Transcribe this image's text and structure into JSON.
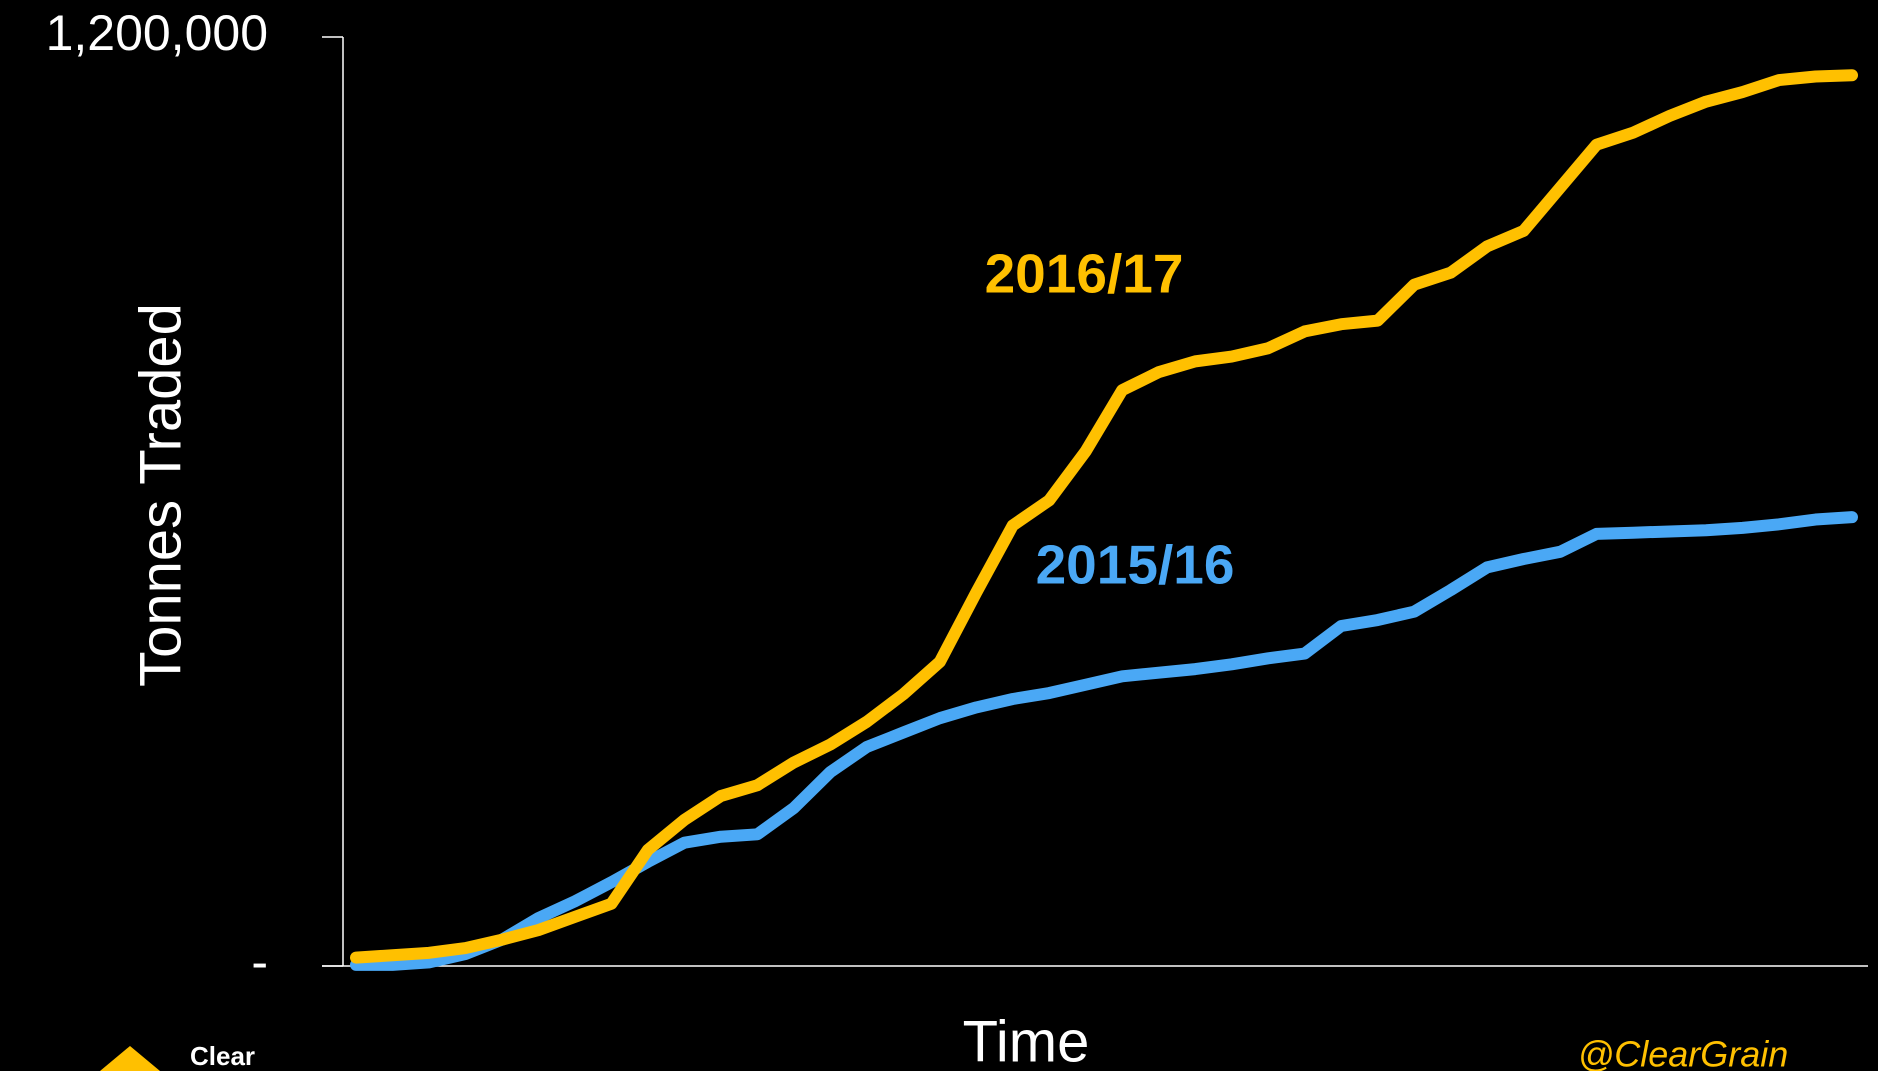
{
  "chart_data": {
    "type": "line",
    "y_label": "Tonnes Traded",
    "x_label": "Time",
    "watermark": "@ClearGrain",
    "logo_text": "Clear",
    "categories": [
      null,
      null,
      null,
      null,
      null,
      null,
      null,
      null,
      null,
      null,
      null,
      null,
      null,
      null,
      null,
      null,
      null,
      null,
      null,
      null,
      null,
      null,
      null,
      null,
      null,
      null,
      null,
      null,
      null,
      null,
      null,
      null,
      null,
      null,
      null,
      null,
      null,
      null,
      null,
      null,
      null,
      null
    ],
    "ylim": [
      0,
      1200000
    ],
    "yticks": [
      {
        "value": 0,
        "label": "-"
      },
      {
        "value": 1200000,
        "label": "1,200,000"
      }
    ],
    "series": [
      {
        "name": "2015/16",
        "color": "#4aa8f5",
        "values": [
          1500,
          1500,
          4600,
          15500,
          34000,
          61900,
          83500,
          108200,
          134500,
          159300,
          167000,
          170100,
          204100,
          250500,
          283000,
          301600,
          320100,
          334000,
          344900,
          352600,
          363400,
          374200,
          378900,
          383500,
          389700,
          397400,
          403600,
          439200,
          446900,
          457700,
          485500,
          514900,
          525700,
          535000,
          558200,
          559700,
          561300,
          562800,
          565900,
          570500,
          576700,
          579800
        ]
      },
      {
        "name": "2016/17",
        "color": "#ffc000",
        "values": [
          10800,
          13900,
          17000,
          23200,
          34000,
          46400,
          63400,
          80400,
          150000,
          188700,
          219600,
          233500,
          262900,
          286100,
          315500,
          351000,
          392800,
          482500,
          569100,
          601600,
          665000,
          743900,
          767100,
          781000,
          787200,
          798000,
          819700,
          829000,
          833600,
          880000,
          895500,
          929500,
          949600,
          1005200,
          1060900,
          1076400,
          1098000,
          1116500,
          1128900,
          1144400,
          1149000,
          1150600
        ]
      }
    ]
  }
}
